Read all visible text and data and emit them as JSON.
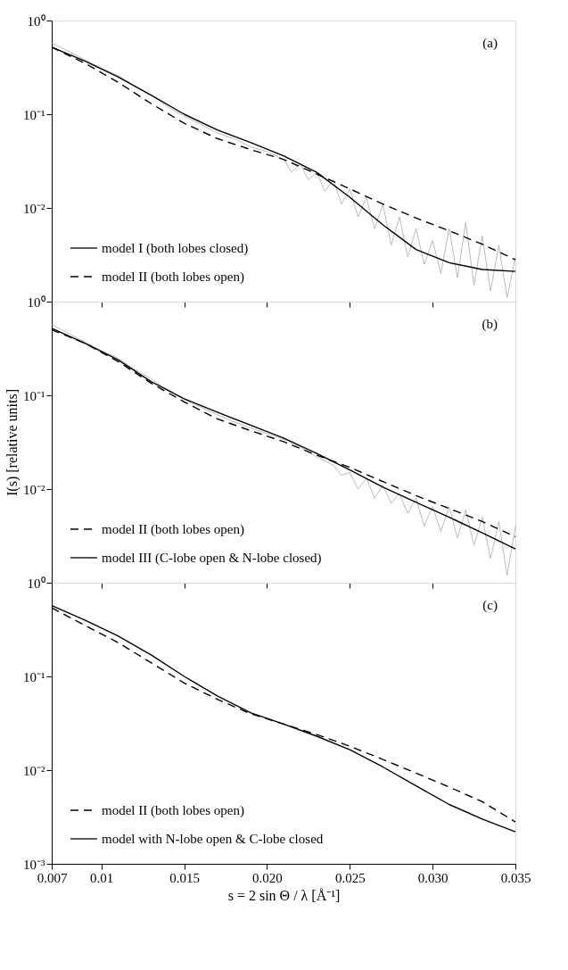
{
  "chart_data": [
    {
      "type": "line",
      "annotations": [
        "(a)"
      ],
      "legend": "bottom left",
      "log": "y",
      "grid": false,
      "tick_labels": "y",
      "xlim": [
        0.007,
        0.035
      ],
      "xticks": [
        0.007,
        0.01,
        0.015,
        0.02,
        0.025,
        0.03,
        0.035
      ],
      "ylim": [
        0.001,
        1
      ],
      "yticks": [
        {
          "value": 0.01,
          "label": "10⁻²"
        },
        {
          "value": 0.1,
          "label": "10⁻¹"
        },
        {
          "value": 1,
          "label": "10⁰"
        }
      ],
      "series": [
        {
          "color": "#aaaaaa",
          "line_style": "solid",
          "x": [
            0.007,
            0.008,
            0.009,
            0.01,
            0.011,
            0.012,
            0.013,
            0.014,
            0.015,
            0.016,
            0.017,
            0.018,
            0.019,
            0.02,
            0.021,
            0.0215,
            0.022,
            0.0225,
            0.023,
            0.0235,
            0.024,
            0.0245,
            0.025,
            0.0255,
            0.026,
            0.0265,
            0.027,
            0.0275,
            0.028,
            0.0285,
            0.029,
            0.0295,
            0.03,
            0.0305,
            0.031,
            0.0315,
            0.032,
            0.0325,
            0.033,
            0.0335,
            0.034,
            0.0345,
            0.035
          ],
          "values": [
            0.58,
            0.47,
            0.38,
            0.31,
            0.26,
            0.2,
            0.16,
            0.12,
            0.095,
            0.078,
            0.063,
            0.055,
            0.045,
            0.04,
            0.033,
            0.024,
            0.03,
            0.02,
            0.024,
            0.015,
            0.02,
            0.011,
            0.016,
            0.008,
            0.013,
            0.006,
            0.011,
            0.004,
            0.008,
            0.003,
            0.006,
            0.0025,
            0.0045,
            0.002,
            0.006,
            0.0018,
            0.007,
            0.0015,
            0.005,
            0.0013,
            0.004,
            0.0011,
            0.003
          ]
        },
        {
          "name": "model I  (both lobes closed)",
          "color": "#000000",
          "line_style": "solid",
          "x": [
            0.007,
            0.009,
            0.011,
            0.013,
            0.015,
            0.017,
            0.019,
            0.021,
            0.023,
            0.025,
            0.027,
            0.029,
            0.031,
            0.033,
            0.035
          ],
          "values": [
            0.52,
            0.37,
            0.25,
            0.16,
            0.1,
            0.068,
            0.05,
            0.036,
            0.024,
            0.013,
            0.0066,
            0.0036,
            0.0026,
            0.0022,
            0.0021
          ]
        },
        {
          "name": "model II  (both lobes open)",
          "color": "#000000",
          "line_style": "dashed",
          "x": [
            0.007,
            0.009,
            0.011,
            0.013,
            0.015,
            0.017,
            0.019,
            0.021,
            0.023,
            0.025,
            0.027,
            0.029,
            0.031,
            0.033,
            0.035
          ],
          "values": [
            0.52,
            0.35,
            0.22,
            0.13,
            0.08,
            0.055,
            0.042,
            0.033,
            0.023,
            0.016,
            0.011,
            0.0078,
            0.0057,
            0.0041,
            0.0028
          ]
        }
      ]
    },
    {
      "type": "line",
      "annotations": [
        "(b)"
      ],
      "ylabel": "I(s)  [relative units]",
      "legend": "bottom left",
      "log": "y",
      "grid": false,
      "tick_labels": "y",
      "xlim": [
        0.007,
        0.035
      ],
      "xticks": [
        0.007,
        0.01,
        0.015,
        0.02,
        0.025,
        0.03,
        0.035
      ],
      "ylim": [
        0.001,
        1
      ],
      "yticks": [
        {
          "value": 0.01,
          "label": "10⁻²"
        },
        {
          "value": 0.1,
          "label": "10⁻¹"
        },
        {
          "value": 1,
          "label": "10⁰"
        }
      ],
      "series": [
        {
          "color": "#aaaaaa",
          "line_style": "solid",
          "x": [
            0.007,
            0.008,
            0.009,
            0.01,
            0.011,
            0.012,
            0.013,
            0.014,
            0.015,
            0.016,
            0.017,
            0.018,
            0.019,
            0.02,
            0.021,
            0.022,
            0.023,
            0.024,
            0.0245,
            0.025,
            0.0255,
            0.026,
            0.0265,
            0.027,
            0.0275,
            0.028,
            0.0285,
            0.029,
            0.0295,
            0.03,
            0.0305,
            0.031,
            0.0315,
            0.032,
            0.0325,
            0.033,
            0.0335,
            0.034,
            0.0345,
            0.035
          ],
          "values": [
            0.57,
            0.46,
            0.37,
            0.3,
            0.25,
            0.19,
            0.15,
            0.115,
            0.09,
            0.075,
            0.062,
            0.052,
            0.045,
            0.039,
            0.034,
            0.028,
            0.022,
            0.018,
            0.014,
            0.015,
            0.01,
            0.013,
            0.008,
            0.011,
            0.007,
            0.009,
            0.0055,
            0.008,
            0.004,
            0.0065,
            0.0035,
            0.0065,
            0.003,
            0.006,
            0.0025,
            0.005,
            0.0018,
            0.0045,
            0.0012,
            0.004
          ]
        },
        {
          "name": "model II  (both lobes open)",
          "color": "#000000",
          "line_style": "dashed",
          "x": [
            0.007,
            0.009,
            0.011,
            0.013,
            0.015,
            0.017,
            0.019,
            0.021,
            0.023,
            0.025,
            0.027,
            0.029,
            0.031,
            0.033,
            0.035
          ],
          "values": [
            0.5,
            0.36,
            0.23,
            0.135,
            0.085,
            0.056,
            0.042,
            0.032,
            0.023,
            0.017,
            0.012,
            0.0085,
            0.0062,
            0.0045,
            0.0031
          ]
        },
        {
          "name": "model III  (C-lobe open & N-lobe closed)",
          "color": "#000000",
          "line_style": "solid",
          "x": [
            0.007,
            0.009,
            0.011,
            0.013,
            0.015,
            0.017,
            0.019,
            0.021,
            0.023,
            0.025,
            0.027,
            0.029,
            0.031,
            0.033,
            0.035
          ],
          "values": [
            0.52,
            0.36,
            0.24,
            0.14,
            0.092,
            0.066,
            0.048,
            0.035,
            0.024,
            0.016,
            0.0105,
            0.0072,
            0.005,
            0.0034,
            0.0023
          ]
        }
      ]
    },
    {
      "type": "line",
      "annotations": [
        "(c)"
      ],
      "xlabel": "s = 2 sin Θ / λ  [Å⁻¹]",
      "legend": "bottom left",
      "log": "y",
      "grid": false,
      "xlim": [
        0.007,
        0.035
      ],
      "xticks": [
        0.007,
        0.01,
        0.015,
        {
          "value": 0.02,
          "label": "0.020"
        },
        0.025,
        {
          "value": 0.03,
          "label": "0.030"
        },
        0.035
      ],
      "ylim": [
        0.001,
        1
      ],
      "yticks": [
        {
          "value": 0.001,
          "label": "10⁻³"
        },
        {
          "value": 0.01,
          "label": "10⁻²"
        },
        {
          "value": 0.1,
          "label": "10⁻¹"
        },
        {
          "value": 1,
          "label": "10⁰"
        }
      ],
      "series": [
        {
          "name": "model II  (both lobes open)",
          "color": "#000000",
          "line_style": "dashed",
          "x": [
            0.007,
            0.009,
            0.011,
            0.013,
            0.015,
            0.017,
            0.019,
            0.021,
            0.023,
            0.025,
            0.027,
            0.029,
            0.031,
            0.033,
            0.035
          ],
          "values": [
            0.54,
            0.35,
            0.23,
            0.14,
            0.085,
            0.057,
            0.04,
            0.031,
            0.024,
            0.018,
            0.013,
            0.0093,
            0.0066,
            0.0046,
            0.0028
          ]
        },
        {
          "name": "model with N-lobe open & C-lobe closed",
          "color": "#000000",
          "line_style": "solid",
          "x": [
            0.007,
            0.009,
            0.011,
            0.013,
            0.015,
            0.017,
            0.019,
            0.021,
            0.023,
            0.025,
            0.027,
            0.029,
            0.031,
            0.033,
            0.035
          ],
          "values": [
            0.57,
            0.4,
            0.27,
            0.17,
            0.1,
            0.062,
            0.041,
            0.031,
            0.023,
            0.0165,
            0.0108,
            0.0068,
            0.0043,
            0.003,
            0.0022
          ]
        }
      ]
    }
  ]
}
